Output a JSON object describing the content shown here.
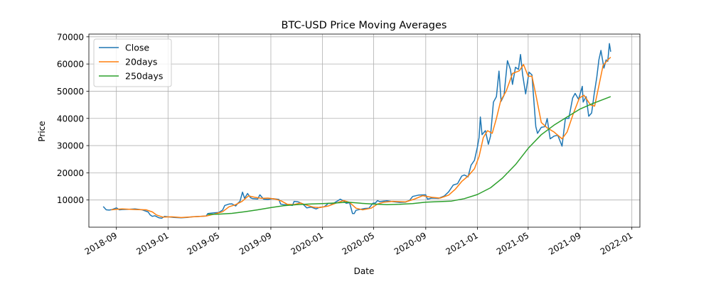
{
  "chart_data": {
    "type": "line",
    "title": "BTC-USD Price Moving Averages",
    "xlabel": "Date",
    "ylabel": "Price",
    "xlim": [
      "2018-06-28",
      "2022-01-20"
    ],
    "ylim": [
      0,
      71000
    ],
    "grid": true,
    "legend_position": "top-left",
    "x_ticks": [
      "2018-09",
      "2019-01",
      "2019-05",
      "2019-09",
      "2020-01",
      "2020-05",
      "2020-09",
      "2021-01",
      "2021-05",
      "2021-09",
      "2022-01"
    ],
    "y_ticks": [
      10000,
      20000,
      30000,
      40000,
      50000,
      60000,
      70000
    ],
    "series": [
      {
        "name": "Close",
        "color": "#1f77b4",
        "points": [
          [
            "2018-08-01",
            7600
          ],
          [
            "2018-08-08",
            6400
          ],
          [
            "2018-08-15",
            6300
          ],
          [
            "2018-08-22",
            6500
          ],
          [
            "2018-09-01",
            7100
          ],
          [
            "2018-09-08",
            6400
          ],
          [
            "2018-09-15",
            6500
          ],
          [
            "2018-10-01",
            6600
          ],
          [
            "2018-10-15",
            6700
          ],
          [
            "2018-11-01",
            6400
          ],
          [
            "2018-11-15",
            5600
          ],
          [
            "2018-11-20",
            4500
          ],
          [
            "2018-11-25",
            4000
          ],
          [
            "2018-12-01",
            4200
          ],
          [
            "2018-12-10",
            3500
          ],
          [
            "2018-12-17",
            3300
          ],
          [
            "2018-12-24",
            4000
          ],
          [
            "2019-01-01",
            3800
          ],
          [
            "2019-01-15",
            3600
          ],
          [
            "2019-02-01",
            3450
          ],
          [
            "2019-02-15",
            3600
          ],
          [
            "2019-03-01",
            3850
          ],
          [
            "2019-03-15",
            3950
          ],
          [
            "2019-04-01",
            4100
          ],
          [
            "2019-04-05",
            5000
          ],
          [
            "2019-04-20",
            5300
          ],
          [
            "2019-05-01",
            5400
          ],
          [
            "2019-05-10",
            6300
          ],
          [
            "2019-05-15",
            8000
          ],
          [
            "2019-05-25",
            8500
          ],
          [
            "2019-06-01",
            8600
          ],
          [
            "2019-06-10",
            7800
          ],
          [
            "2019-06-15",
            8800
          ],
          [
            "2019-06-20",
            9500
          ],
          [
            "2019-06-26",
            12900
          ],
          [
            "2019-07-01",
            10600
          ],
          [
            "2019-07-08",
            12400
          ],
          [
            "2019-07-15",
            10800
          ],
          [
            "2019-07-20",
            10500
          ],
          [
            "2019-08-01",
            10400
          ],
          [
            "2019-08-06",
            11900
          ],
          [
            "2019-08-15",
            10300
          ],
          [
            "2019-08-25",
            10200
          ],
          [
            "2019-09-05",
            10500
          ],
          [
            "2019-09-20",
            10200
          ],
          [
            "2019-09-24",
            8500
          ],
          [
            "2019-10-01",
            8300
          ],
          [
            "2019-10-15",
            8200
          ],
          [
            "2019-10-22",
            8000
          ],
          [
            "2019-10-26",
            9500
          ],
          [
            "2019-11-05",
            9300
          ],
          [
            "2019-11-15",
            8600
          ],
          [
            "2019-11-25",
            7100
          ],
          [
            "2019-12-05",
            7400
          ],
          [
            "2019-12-17",
            6700
          ],
          [
            "2019-12-25",
            7300
          ],
          [
            "2020-01-05",
            7500
          ],
          [
            "2020-01-15",
            8800
          ],
          [
            "2020-01-25",
            8600
          ],
          [
            "2020-02-05",
            9600
          ],
          [
            "2020-02-12",
            10300
          ],
          [
            "2020-02-20",
            9600
          ],
          [
            "2020-02-26",
            8800
          ],
          [
            "2020-03-05",
            9000
          ],
          [
            "2020-03-12",
            5000
          ],
          [
            "2020-03-16",
            5000
          ],
          [
            "2020-03-20",
            6200
          ],
          [
            "2020-04-01",
            6600
          ],
          [
            "2020-04-10",
            6900
          ],
          [
            "2020-04-20",
            7000
          ],
          [
            "2020-04-29",
            8800
          ],
          [
            "2020-05-05",
            8900
          ],
          [
            "2020-05-10",
            9800
          ],
          [
            "2020-05-15",
            9400
          ],
          [
            "2020-06-01",
            9700
          ],
          [
            "2020-06-15",
            9400
          ],
          [
            "2020-07-01",
            9100
          ],
          [
            "2020-07-15",
            9200
          ],
          [
            "2020-07-25",
            9900
          ],
          [
            "2020-08-01",
            11300
          ],
          [
            "2020-08-15",
            11800
          ],
          [
            "2020-09-01",
            11900
          ],
          [
            "2020-09-05",
            10300
          ],
          [
            "2020-09-15",
            10700
          ],
          [
            "2020-10-01",
            10600
          ],
          [
            "2020-10-15",
            11500
          ],
          [
            "2020-10-25",
            13000
          ],
          [
            "2020-11-05",
            15500
          ],
          [
            "2020-11-15",
            16000
          ],
          [
            "2020-11-25",
            18800
          ],
          [
            "2020-12-01",
            19200
          ],
          [
            "2020-12-10",
            18500
          ],
          [
            "2020-12-17",
            22800
          ],
          [
            "2020-12-25",
            24600
          ],
          [
            "2021-01-01",
            29400
          ],
          [
            "2021-01-05",
            33000
          ],
          [
            "2021-01-08",
            40500
          ],
          [
            "2021-01-12",
            34000
          ],
          [
            "2021-01-20",
            35500
          ],
          [
            "2021-01-27",
            30500
          ],
          [
            "2021-02-01",
            33500
          ],
          [
            "2021-02-08",
            46000
          ],
          [
            "2021-02-15",
            48000
          ],
          [
            "2021-02-21",
            57400
          ],
          [
            "2021-02-26",
            46300
          ],
          [
            "2021-03-05",
            48500
          ],
          [
            "2021-03-13",
            61200
          ],
          [
            "2021-03-20",
            58000
          ],
          [
            "2021-03-25",
            52500
          ],
          [
            "2021-04-01",
            58800
          ],
          [
            "2021-04-08",
            58000
          ],
          [
            "2021-04-13",
            63500
          ],
          [
            "2021-04-18",
            56000
          ],
          [
            "2021-04-25",
            49000
          ],
          [
            "2021-05-03",
            57000
          ],
          [
            "2021-05-10",
            56000
          ],
          [
            "2021-05-13",
            49500
          ],
          [
            "2021-05-19",
            37000
          ],
          [
            "2021-05-23",
            34500
          ],
          [
            "2021-06-01",
            36700
          ],
          [
            "2021-06-10",
            37000
          ],
          [
            "2021-06-15",
            40000
          ],
          [
            "2021-06-22",
            32500
          ],
          [
            "2021-07-01",
            33500
          ],
          [
            "2021-07-10",
            33800
          ],
          [
            "2021-07-20",
            29800
          ],
          [
            "2021-07-28",
            40000
          ],
          [
            "2021-08-05",
            40000
          ],
          [
            "2021-08-14",
            47500
          ],
          [
            "2021-08-20",
            49200
          ],
          [
            "2021-08-28",
            47000
          ],
          [
            "2021-09-06",
            51800
          ],
          [
            "2021-09-08",
            46000
          ],
          [
            "2021-09-15",
            48000
          ],
          [
            "2021-09-21",
            40800
          ],
          [
            "2021-09-28",
            42000
          ],
          [
            "2021-10-04",
            49000
          ],
          [
            "2021-10-10",
            55000
          ],
          [
            "2021-10-15",
            61500
          ],
          [
            "2021-10-20",
            65000
          ],
          [
            "2021-10-27",
            58500
          ],
          [
            "2021-11-01",
            61500
          ],
          [
            "2021-11-05",
            61000
          ],
          [
            "2021-11-09",
            67500
          ],
          [
            "2021-11-12",
            64500
          ]
        ]
      },
      {
        "name": "20days",
        "color": "#ff7f0e",
        "points": [
          [
            "2018-08-20",
            6400
          ],
          [
            "2018-09-01",
            6600
          ],
          [
            "2018-09-15",
            6700
          ],
          [
            "2018-10-15",
            6500
          ],
          [
            "2018-11-10",
            6400
          ],
          [
            "2018-11-25",
            5600
          ],
          [
            "2018-12-05",
            4500
          ],
          [
            "2018-12-20",
            3700
          ],
          [
            "2019-01-10",
            3800
          ],
          [
            "2019-02-01",
            3550
          ],
          [
            "2019-03-01",
            3800
          ],
          [
            "2019-04-01",
            4100
          ],
          [
            "2019-04-20",
            4800
          ],
          [
            "2019-05-10",
            5700
          ],
          [
            "2019-05-25",
            7500
          ],
          [
            "2019-06-10",
            8300
          ],
          [
            "2019-06-25",
            9500
          ],
          [
            "2019-07-10",
            11500
          ],
          [
            "2019-07-25",
            11000
          ],
          [
            "2019-08-10",
            10600
          ],
          [
            "2019-08-25",
            10700
          ],
          [
            "2019-09-10",
            10400
          ],
          [
            "2019-09-25",
            9700
          ],
          [
            "2019-10-10",
            8400
          ],
          [
            "2019-10-25",
            8300
          ],
          [
            "2019-11-10",
            8900
          ],
          [
            "2019-11-25",
            8100
          ],
          [
            "2019-12-10",
            7400
          ],
          [
            "2019-12-25",
            7200
          ],
          [
            "2020-01-15",
            7800
          ],
          [
            "2020-02-01",
            8800
          ],
          [
            "2020-02-20",
            9800
          ],
          [
            "2020-03-05",
            9100
          ],
          [
            "2020-03-20",
            7000
          ],
          [
            "2020-04-05",
            6400
          ],
          [
            "2020-04-25",
            7000
          ],
          [
            "2020-05-10",
            8500
          ],
          [
            "2020-05-25",
            9200
          ],
          [
            "2020-06-15",
            9500
          ],
          [
            "2020-07-15",
            9300
          ],
          [
            "2020-08-05",
            10300
          ],
          [
            "2020-08-25",
            11600
          ],
          [
            "2020-09-15",
            11000
          ],
          [
            "2020-10-05",
            10700
          ],
          [
            "2020-10-25",
            11800
          ],
          [
            "2020-11-10",
            14000
          ],
          [
            "2020-11-25",
            16800
          ],
          [
            "2020-12-10",
            18800
          ],
          [
            "2020-12-25",
            21500
          ],
          [
            "2021-01-05",
            26000
          ],
          [
            "2021-01-15",
            33000
          ],
          [
            "2021-01-25",
            35500
          ],
          [
            "2021-02-05",
            34500
          ],
          [
            "2021-02-15",
            40000
          ],
          [
            "2021-02-25",
            46500
          ],
          [
            "2021-03-10",
            50000
          ],
          [
            "2021-03-25",
            56500
          ],
          [
            "2021-04-10",
            57500
          ],
          [
            "2021-04-20",
            59800
          ],
          [
            "2021-05-01",
            55500
          ],
          [
            "2021-05-10",
            55500
          ],
          [
            "2021-05-20",
            48000
          ],
          [
            "2021-06-01",
            38500
          ],
          [
            "2021-06-15",
            36500
          ],
          [
            "2021-07-01",
            35000
          ],
          [
            "2021-07-20",
            32500
          ],
          [
            "2021-08-01",
            35000
          ],
          [
            "2021-08-15",
            41500
          ],
          [
            "2021-08-30",
            47500
          ],
          [
            "2021-09-10",
            48500
          ],
          [
            "2021-09-25",
            45000
          ],
          [
            "2021-10-05",
            44500
          ],
          [
            "2021-10-15",
            52000
          ],
          [
            "2021-10-25",
            59500
          ],
          [
            "2021-11-05",
            61500
          ],
          [
            "2021-11-12",
            62500
          ]
        ]
      },
      {
        "name": "250days",
        "color": "#2ca02c",
        "points": [
          [
            "2019-04-05",
            4700
          ],
          [
            "2019-05-01",
            4800
          ],
          [
            "2019-06-01",
            5100
          ],
          [
            "2019-07-01",
            5700
          ],
          [
            "2019-08-01",
            6400
          ],
          [
            "2019-09-01",
            7200
          ],
          [
            "2019-10-01",
            7900
          ],
          [
            "2019-11-01",
            8300
          ],
          [
            "2019-12-01",
            8500
          ],
          [
            "2020-01-01",
            8700
          ],
          [
            "2020-02-01",
            8900
          ],
          [
            "2020-03-01",
            9200
          ],
          [
            "2020-04-01",
            8800
          ],
          [
            "2020-05-01",
            8500
          ],
          [
            "2020-06-01",
            8300
          ],
          [
            "2020-07-01",
            8400
          ],
          [
            "2020-08-01",
            8700
          ],
          [
            "2020-09-01",
            9200
          ],
          [
            "2020-10-01",
            9400
          ],
          [
            "2020-11-01",
            9600
          ],
          [
            "2020-12-01",
            10500
          ],
          [
            "2021-01-01",
            12000
          ],
          [
            "2021-02-01",
            14500
          ],
          [
            "2021-03-01",
            18000
          ],
          [
            "2021-04-01",
            23000
          ],
          [
            "2021-05-01",
            29000
          ],
          [
            "2021-06-01",
            34000
          ],
          [
            "2021-07-01",
            37500
          ],
          [
            "2021-08-01",
            40500
          ],
          [
            "2021-09-01",
            43500
          ],
          [
            "2021-10-01",
            45500
          ],
          [
            "2021-11-12",
            48000
          ]
        ]
      }
    ]
  }
}
